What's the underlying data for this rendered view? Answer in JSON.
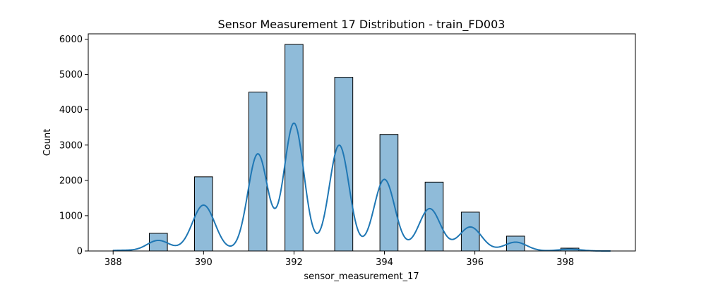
{
  "chart_data": {
    "type": "bar",
    "subtype": "histogram-with-kde",
    "title": "Sensor Measurement 17 Distribution - train_FD003",
    "xlabel": "sensor_measurement_17",
    "ylabel": "Count",
    "xlim": [
      387.45,
      399.55
    ],
    "ylim": [
      0,
      6150
    ],
    "grid": false,
    "x_ticks": [
      388,
      390,
      392,
      394,
      396,
      398
    ],
    "y_ticks": [
      0,
      1000,
      2000,
      3000,
      4000,
      5000,
      6000
    ],
    "x_tick_labels": [
      "388",
      "390",
      "392",
      "394",
      "396",
      "398"
    ],
    "y_tick_labels": [
      "0",
      "1000",
      "2000",
      "3000",
      "4000",
      "5000",
      "6000"
    ],
    "bars": [
      {
        "x_start": 388.0,
        "x_end": 388.4,
        "value": 20
      },
      {
        "x_start": 388.8,
        "x_end": 389.2,
        "value": 500
      },
      {
        "x_start": 389.8,
        "x_end": 390.2,
        "value": 2100
      },
      {
        "x_start": 391.0,
        "x_end": 391.4,
        "value": 4500
      },
      {
        "x_start": 391.8,
        "x_end": 392.2,
        "value": 5850
      },
      {
        "x_start": 392.9,
        "x_end": 393.3,
        "value": 4920
      },
      {
        "x_start": 393.9,
        "x_end": 394.3,
        "value": 3300
      },
      {
        "x_start": 394.9,
        "x_end": 395.3,
        "value": 1950
      },
      {
        "x_start": 395.7,
        "x_end": 396.1,
        "value": 1100
      },
      {
        "x_start": 396.7,
        "x_end": 397.1,
        "value": 420
      },
      {
        "x_start": 397.9,
        "x_end": 398.3,
        "value": 80
      }
    ],
    "kde": {
      "peaks": [
        {
          "x": 388.2,
          "y": 20,
          "w": 0.25
        },
        {
          "x": 389.0,
          "y": 300,
          "w": 0.25
        },
        {
          "x": 390.0,
          "y": 1300,
          "w": 0.25
        },
        {
          "x": 391.2,
          "y": 2750,
          "w": 0.22
        },
        {
          "x": 392.0,
          "y": 3620,
          "w": 0.22
        },
        {
          "x": 393.0,
          "y": 3000,
          "w": 0.22
        },
        {
          "x": 394.0,
          "y": 2030,
          "w": 0.23
        },
        {
          "x": 395.0,
          "y": 1200,
          "w": 0.24
        },
        {
          "x": 395.9,
          "y": 680,
          "w": 0.25
        },
        {
          "x": 396.9,
          "y": 250,
          "w": 0.25
        },
        {
          "x": 398.1,
          "y": 50,
          "w": 0.25
        }
      ],
      "x_range": [
        388.0,
        399.0
      ]
    },
    "colors": {
      "bar_fill": "#1f77b4",
      "bar_opacity": 0.5,
      "bar_edge": "#000000",
      "kde_line": "#1f77b4"
    }
  }
}
